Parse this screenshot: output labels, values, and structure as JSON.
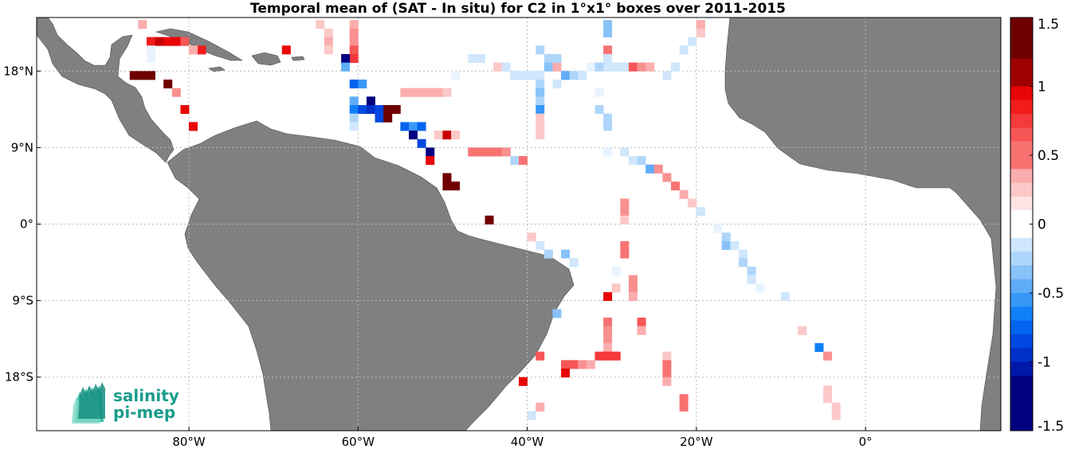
{
  "title": "Temporal mean of (SAT - In situ) for C2 in 1°x1° boxes over 2011-2015",
  "map": {
    "lon_range": [
      -98,
      16
    ],
    "lat_range": [
      -24.3,
      24.3
    ],
    "grid": true,
    "land_color": "#808080",
    "ocean_color": "#ffffff",
    "lon_ticks": [
      {
        "value": -80,
        "label": "80°W"
      },
      {
        "value": -60,
        "label": "60°W"
      },
      {
        "value": -40,
        "label": "40°W"
      },
      {
        "value": -20,
        "label": "20°W"
      },
      {
        "value": 0,
        "label": "0°"
      }
    ],
    "lat_ticks": [
      {
        "value": 18,
        "label": "18°N"
      },
      {
        "value": 9,
        "label": "9°N"
      },
      {
        "value": 0,
        "label": "0°"
      },
      {
        "value": -9,
        "label": "9°S"
      },
      {
        "value": -18,
        "label": "18°S"
      }
    ]
  },
  "colorbar": {
    "min": -1.5,
    "max": 1.5,
    "levels": 30,
    "placement": "right",
    "ticks": [
      {
        "value": 1.5,
        "label": "1.5"
      },
      {
        "value": 1,
        "label": "1"
      },
      {
        "value": 0.5,
        "label": "0.5"
      },
      {
        "value": 0,
        "label": "0"
      },
      {
        "value": -0.5,
        "label": "-0.5"
      },
      {
        "value": -1,
        "label": "-1"
      },
      {
        "value": -1.5,
        "label": "-1.5"
      }
    ]
  },
  "logo": {
    "line1": "salinity",
    "line2": "pi-mep"
  },
  "boxes": [
    [
      -86,
      23,
      0.3
    ],
    [
      -85,
      21,
      0.8
    ],
    [
      -84,
      21,
      1.0
    ],
    [
      -83,
      21,
      0.9
    ],
    [
      -82,
      21,
      0.9
    ],
    [
      -81,
      21,
      0.6
    ],
    [
      -79,
      20,
      0.8
    ],
    [
      -80,
      20,
      0.3
    ],
    [
      -85,
      20,
      -0.1
    ],
    [
      -85,
      19,
      -0.1
    ],
    [
      -87,
      17,
      1.2
    ],
    [
      -86,
      17,
      1.4
    ],
    [
      -85,
      17,
      1.4
    ],
    [
      -83,
      16,
      1.2
    ],
    [
      -82,
      15,
      0.4
    ],
    [
      -81,
      13,
      0.9
    ],
    [
      -80,
      11,
      0.9
    ],
    [
      -69,
      20,
      0.9
    ],
    [
      -65,
      23,
      0.2
    ],
    [
      -64,
      22,
      0.2
    ],
    [
      -64,
      21,
      0.3
    ],
    [
      -64,
      20,
      0.2
    ],
    [
      -61,
      23,
      0.3
    ],
    [
      -61,
      22,
      0.4
    ],
    [
      -61,
      21,
      0.4
    ],
    [
      -61,
      20,
      0.6
    ],
    [
      -61,
      19,
      0.7
    ],
    [
      -62,
      19,
      -1.4
    ],
    [
      -62,
      18,
      -0.5
    ],
    [
      -61,
      16,
      -0.8
    ],
    [
      -60,
      16,
      -0.6
    ],
    [
      -61,
      14,
      -0.5
    ],
    [
      -61,
      13,
      -0.7
    ],
    [
      -60,
      13,
      -0.9
    ],
    [
      -59,
      14,
      -1.4
    ],
    [
      -59,
      13,
      -1.0
    ],
    [
      -58,
      13,
      -0.9
    ],
    [
      -58,
      12,
      -0.9
    ],
    [
      -57,
      13,
      1.4
    ],
    [
      -57,
      12,
      1.3
    ],
    [
      -56,
      13,
      1.2
    ],
    [
      -61,
      12,
      -0.3
    ],
    [
      -61,
      11,
      -0.2
    ],
    [
      -55,
      11,
      -0.8
    ],
    [
      -54,
      11,
      -0.6
    ],
    [
      -54,
      10,
      -1.4
    ],
    [
      -53,
      11,
      -0.8
    ],
    [
      -53,
      9,
      -0.9
    ],
    [
      -52,
      8,
      -1.4
    ],
    [
      -52,
      7,
      0.9
    ],
    [
      -51,
      10,
      0.2
    ],
    [
      -50,
      10,
      1.0
    ],
    [
      -49,
      10,
      0.2
    ],
    [
      -55,
      15,
      0.3
    ],
    [
      -54,
      15,
      0.3
    ],
    [
      -53,
      15,
      0.3
    ],
    [
      -52,
      15,
      0.3
    ],
    [
      -51,
      15,
      0.3
    ],
    [
      -50,
      15,
      0.2
    ],
    [
      -50,
      5,
      1.3
    ],
    [
      -50,
      4,
      1.3
    ],
    [
      -49,
      4,
      1.3
    ],
    [
      -45,
      0,
      1.4
    ],
    [
      -47,
      8,
      0.5
    ],
    [
      -46,
      8,
      0.5
    ],
    [
      -45,
      8,
      0.5
    ],
    [
      -44,
      8,
      0.5
    ],
    [
      -43,
      8,
      0.4
    ],
    [
      -42,
      7,
      -0.3
    ],
    [
      -41,
      7,
      0.5
    ],
    [
      -47,
      19,
      -0.2
    ],
    [
      -46,
      19,
      -0.2
    ],
    [
      -49,
      17,
      -0.1
    ],
    [
      -44,
      18,
      0.2
    ],
    [
      -43,
      18,
      -0.2
    ],
    [
      -42,
      17,
      -0.2
    ],
    [
      -41,
      17,
      -0.2
    ],
    [
      -40,
      17,
      -0.2
    ],
    [
      -39,
      17,
      -0.2
    ],
    [
      -39,
      16,
      -0.3
    ],
    [
      -39,
      15,
      -0.4
    ],
    [
      -39,
      14,
      -0.3
    ],
    [
      -39,
      13,
      -0.6
    ],
    [
      -39,
      12,
      0.2
    ],
    [
      -39,
      11,
      0.2
    ],
    [
      -39,
      10,
      0.2
    ],
    [
      -39,
      20,
      -0.3
    ],
    [
      -38,
      19,
      -0.3
    ],
    [
      -38,
      18,
      -0.4
    ],
    [
      -37,
      18,
      0.3
    ],
    [
      -37,
      19,
      -0.3
    ],
    [
      -36,
      17,
      -0.5
    ],
    [
      -35,
      17,
      -0.3
    ],
    [
      -37,
      16,
      -0.2
    ],
    [
      -34,
      17,
      -0.2
    ],
    [
      -33,
      18,
      -0.1
    ],
    [
      -32,
      18,
      -0.3
    ],
    [
      -31,
      20,
      0.5
    ],
    [
      -31,
      19,
      -0.2
    ],
    [
      -31,
      18,
      -0.2
    ],
    [
      -30,
      18,
      -0.2
    ],
    [
      -29,
      18,
      -0.2
    ],
    [
      -28,
      18,
      0.6
    ],
    [
      -27,
      18,
      0.4
    ],
    [
      -26,
      18,
      0.3
    ],
    [
      -24,
      17,
      -0.2
    ],
    [
      -23,
      18,
      -0.2
    ],
    [
      -22,
      20,
      -0.2
    ],
    [
      -21,
      21,
      -0.2
    ],
    [
      -20,
      22,
      0.2
    ],
    [
      -20,
      23,
      0.3
    ],
    [
      -19,
      24,
      -0.1
    ],
    [
      -31,
      22,
      -0.4
    ],
    [
      -31,
      23,
      -0.4
    ],
    [
      -32,
      15,
      -0.1
    ],
    [
      -32,
      13,
      -0.3
    ],
    [
      -31,
      12,
      -0.3
    ],
    [
      -31,
      11,
      -0.3
    ],
    [
      -31,
      8,
      -0.1
    ],
    [
      -29,
      8,
      -0.2
    ],
    [
      -28,
      7,
      -0.2
    ],
    [
      -27,
      7,
      -0.3
    ],
    [
      -26,
      6,
      -0.5
    ],
    [
      -25,
      6,
      0.4
    ],
    [
      -24,
      5,
      0.4
    ],
    [
      -23,
      4,
      0.5
    ],
    [
      -22,
      3,
      0.3
    ],
    [
      -21,
      2,
      0.2
    ],
    [
      -20,
      1,
      -0.2
    ],
    [
      -29,
      2,
      0.4
    ],
    [
      -29,
      1,
      0.4
    ],
    [
      -29,
      0,
      0.2
    ],
    [
      -29,
      -3,
      0.5
    ],
    [
      -29,
      -4,
      0.5
    ],
    [
      -30,
      -6,
      -0.1
    ],
    [
      -28,
      -7,
      0.4
    ],
    [
      -28,
      -8,
      0.4
    ],
    [
      -28,
      -9,
      0.3
    ],
    [
      -30,
      -8,
      0.2
    ],
    [
      -31,
      -9,
      0.9
    ],
    [
      -40,
      -2,
      0.2
    ],
    [
      -39,
      -3,
      -0.2
    ],
    [
      -38,
      -4,
      -0.3
    ],
    [
      -36,
      -4,
      -0.4
    ],
    [
      -35,
      -5,
      -0.2
    ],
    [
      -37,
      -11,
      -0.4
    ],
    [
      -31,
      -12,
      0.5
    ],
    [
      -31,
      -13,
      0.4
    ],
    [
      -31,
      -14,
      0.4
    ],
    [
      -31,
      -15,
      0.3
    ],
    [
      -32,
      -16,
      0.7
    ],
    [
      -31,
      -16,
      0.7
    ],
    [
      -30,
      -16,
      0.7
    ],
    [
      -27,
      -12,
      0.6
    ],
    [
      -27,
      -13,
      0.3
    ],
    [
      -24,
      -16,
      0.2
    ],
    [
      -24,
      -17,
      0.5
    ],
    [
      -24,
      -18,
      0.5
    ],
    [
      -24,
      -19,
      0.3
    ],
    [
      -36,
      -17,
      0.6
    ],
    [
      -35,
      -17,
      0.6
    ],
    [
      -34,
      -17,
      0.4
    ],
    [
      -33,
      -17,
      0.3
    ],
    [
      -36,
      -18,
      0.9
    ],
    [
      -39,
      -16,
      0.6
    ],
    [
      -41,
      -19,
      0.9
    ],
    [
      -39,
      -22,
      0.3
    ],
    [
      -40,
      -23,
      -0.2
    ],
    [
      -22,
      -21,
      0.5
    ],
    [
      -22,
      -22,
      0.5
    ],
    [
      -18,
      -1,
      -0.1
    ],
    [
      -17,
      -2,
      -0.3
    ],
    [
      -17,
      -3,
      -0.4
    ],
    [
      -16,
      -3,
      -0.2
    ],
    [
      -15,
      -4,
      -0.2
    ],
    [
      -15,
      -5,
      -0.3
    ],
    [
      -14,
      -6,
      -0.3
    ],
    [
      -14,
      -7,
      -0.2
    ],
    [
      -13,
      -8,
      -0.1
    ],
    [
      -10,
      -9,
      -0.2
    ],
    [
      -8,
      -13,
      0.2
    ],
    [
      -6,
      -15,
      -0.7
    ],
    [
      -5,
      -16,
      0.4
    ],
    [
      -5,
      -20,
      0.2
    ],
    [
      -5,
      -21,
      0.2
    ],
    [
      -4,
      -22,
      0.2
    ],
    [
      -4,
      -23,
      0.2
    ]
  ]
}
